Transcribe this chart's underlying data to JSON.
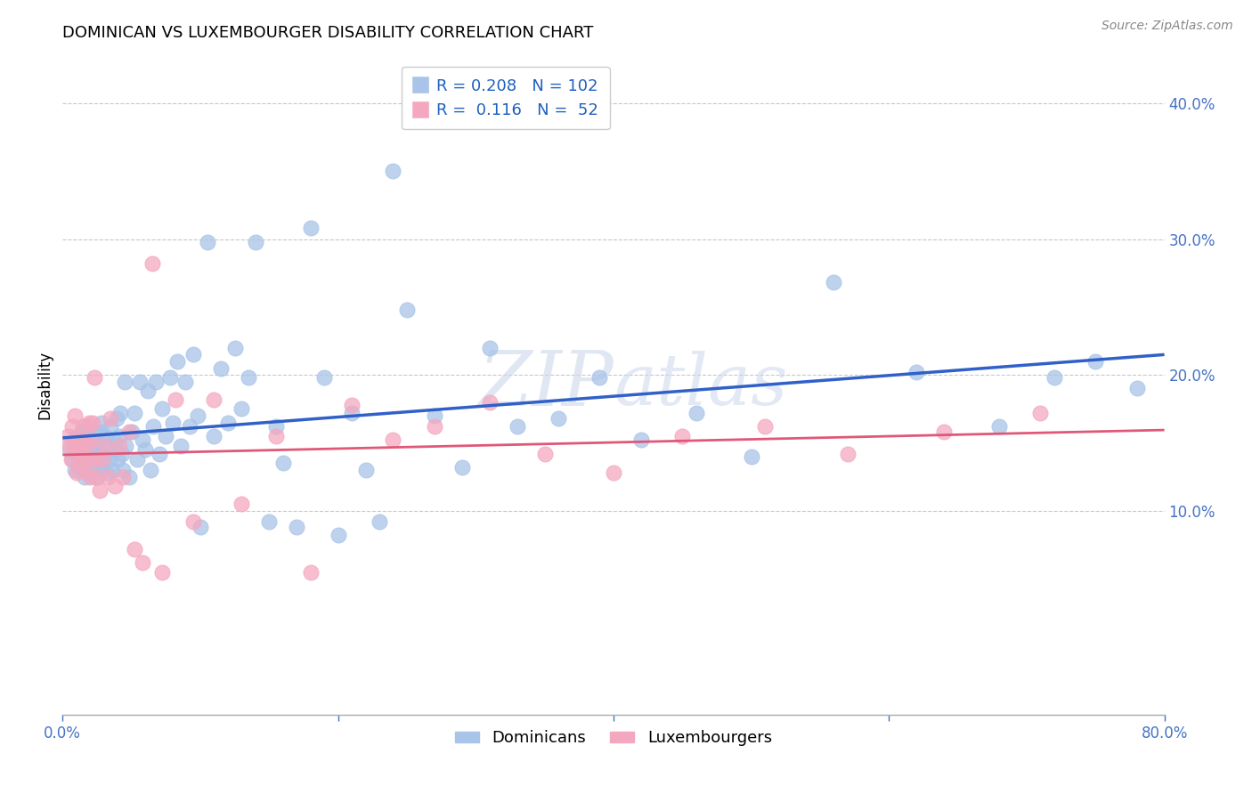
{
  "title": "DOMINICAN VS LUXEMBOURGER DISABILITY CORRELATION CHART",
  "source": "Source: ZipAtlas.com",
  "ylabel": "Disability",
  "xlim": [
    0.0,
    0.8
  ],
  "ylim": [
    -0.05,
    0.435
  ],
  "yticks": [
    0.1,
    0.2,
    0.3,
    0.4
  ],
  "ytick_labels": [
    "10.0%",
    "20.0%",
    "30.0%",
    "40.0%"
  ],
  "xticks": [
    0.0,
    0.2,
    0.4,
    0.6,
    0.8
  ],
  "xtick_labels": [
    "0.0%",
    "",
    "",
    "",
    "80.0%"
  ],
  "legend_R1": "0.208",
  "legend_N1": "102",
  "legend_R2": "0.116",
  "legend_N2": " 52",
  "color_dominican": "#a8c4e8",
  "color_luxembourger": "#f4a8bf",
  "color_trendline1": "#3060c8",
  "color_trendline2": "#e05878",
  "legend1_label": "Dominicans",
  "legend2_label": "Luxembourgers",
  "dominican_x": [
    0.005,
    0.007,
    0.008,
    0.009,
    0.01,
    0.01,
    0.012,
    0.013,
    0.014,
    0.015,
    0.016,
    0.017,
    0.018,
    0.018,
    0.019,
    0.02,
    0.021,
    0.022,
    0.022,
    0.023,
    0.024,
    0.024,
    0.025,
    0.026,
    0.027,
    0.028,
    0.028,
    0.03,
    0.031,
    0.032,
    0.033,
    0.034,
    0.035,
    0.036,
    0.037,
    0.038,
    0.039,
    0.04,
    0.041,
    0.042,
    0.043,
    0.044,
    0.045,
    0.046,
    0.048,
    0.05,
    0.052,
    0.054,
    0.056,
    0.058,
    0.06,
    0.062,
    0.064,
    0.066,
    0.068,
    0.07,
    0.072,
    0.075,
    0.078,
    0.08,
    0.083,
    0.086,
    0.089,
    0.092,
    0.095,
    0.098,
    0.1,
    0.105,
    0.11,
    0.115,
    0.12,
    0.125,
    0.13,
    0.135,
    0.14,
    0.15,
    0.155,
    0.16,
    0.17,
    0.18,
    0.19,
    0.2,
    0.21,
    0.22,
    0.23,
    0.24,
    0.25,
    0.27,
    0.29,
    0.31,
    0.33,
    0.36,
    0.39,
    0.42,
    0.46,
    0.5,
    0.56,
    0.62,
    0.68,
    0.72,
    0.75,
    0.78
  ],
  "dominican_y": [
    0.145,
    0.138,
    0.15,
    0.13,
    0.142,
    0.155,
    0.132,
    0.148,
    0.14,
    0.158,
    0.125,
    0.136,
    0.15,
    0.162,
    0.128,
    0.145,
    0.138,
    0.152,
    0.13,
    0.143,
    0.156,
    0.125,
    0.148,
    0.136,
    0.158,
    0.13,
    0.165,
    0.142,
    0.155,
    0.128,
    0.148,
    0.138,
    0.162,
    0.13,
    0.152,
    0.145,
    0.168,
    0.138,
    0.155,
    0.172,
    0.142,
    0.13,
    0.195,
    0.148,
    0.125,
    0.158,
    0.172,
    0.138,
    0.195,
    0.152,
    0.145,
    0.188,
    0.13,
    0.162,
    0.195,
    0.142,
    0.175,
    0.155,
    0.198,
    0.165,
    0.21,
    0.148,
    0.195,
    0.162,
    0.215,
    0.17,
    0.088,
    0.298,
    0.155,
    0.205,
    0.165,
    0.22,
    0.175,
    0.198,
    0.298,
    0.092,
    0.162,
    0.135,
    0.088,
    0.308,
    0.198,
    0.082,
    0.172,
    0.13,
    0.092,
    0.35,
    0.248,
    0.17,
    0.132,
    0.22,
    0.162,
    0.168,
    0.198,
    0.152,
    0.172,
    0.14,
    0.268,
    0.202,
    0.162,
    0.198,
    0.21,
    0.19
  ],
  "luxembourger_x": [
    0.004,
    0.005,
    0.006,
    0.007,
    0.008,
    0.009,
    0.01,
    0.011,
    0.012,
    0.013,
    0.014,
    0.015,
    0.016,
    0.017,
    0.018,
    0.019,
    0.02,
    0.021,
    0.022,
    0.023,
    0.024,
    0.025,
    0.027,
    0.029,
    0.031,
    0.033,
    0.035,
    0.038,
    0.041,
    0.044,
    0.048,
    0.052,
    0.058,
    0.065,
    0.072,
    0.082,
    0.095,
    0.11,
    0.13,
    0.155,
    0.18,
    0.21,
    0.24,
    0.27,
    0.31,
    0.35,
    0.4,
    0.45,
    0.51,
    0.57,
    0.64,
    0.71
  ],
  "luxembourger_y": [
    0.155,
    0.148,
    0.138,
    0.162,
    0.148,
    0.17,
    0.128,
    0.145,
    0.135,
    0.152,
    0.142,
    0.162,
    0.13,
    0.148,
    0.138,
    0.165,
    0.125,
    0.152,
    0.165,
    0.198,
    0.138,
    0.125,
    0.115,
    0.138,
    0.148,
    0.125,
    0.168,
    0.118,
    0.148,
    0.125,
    0.158,
    0.072,
    0.062,
    0.282,
    0.055,
    0.182,
    0.092,
    0.182,
    0.105,
    0.155,
    0.055,
    0.178,
    0.152,
    0.162,
    0.18,
    0.142,
    0.128,
    0.155,
    0.162,
    0.142,
    0.158,
    0.172
  ]
}
